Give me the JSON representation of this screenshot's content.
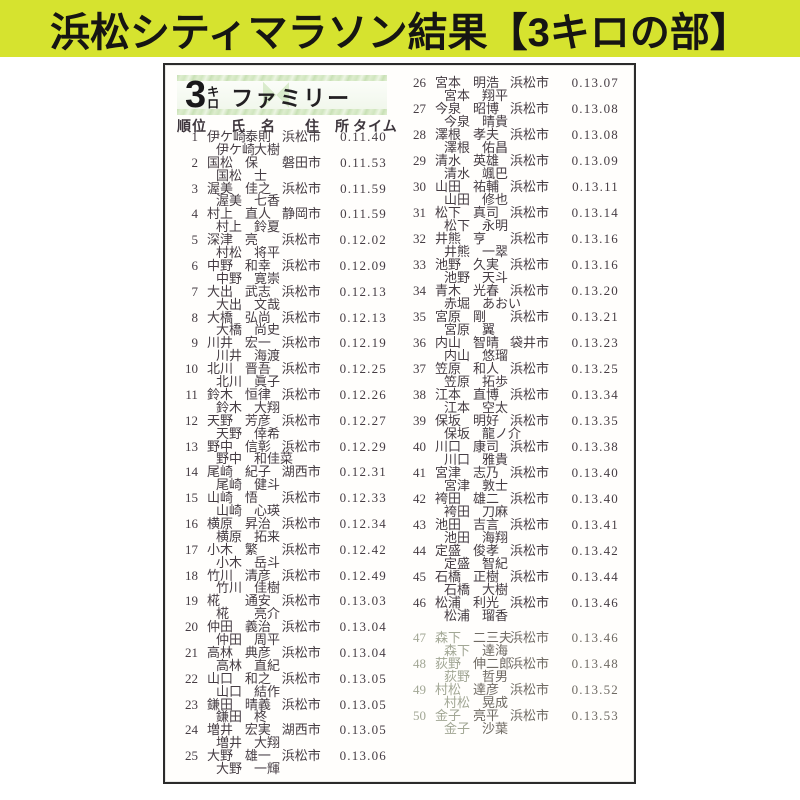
{
  "banner": {
    "title": "浜松シティマラソン結果【3キロの部】",
    "bg_color": "#d6e32f"
  },
  "doc": {
    "race_label": {
      "number": "3",
      "unit_top": "キ",
      "unit_bottom": "ロ",
      "category": "ファミリー"
    },
    "headers": {
      "rank": "順位",
      "name": "氏　名",
      "address": "住　所",
      "time": "タイム"
    },
    "accent_colors": {
      "strip_green": "#cbe3b8",
      "text": "#453c43",
      "faded": "#a2a795"
    },
    "results": [
      {
        "rank": "1",
        "f1": "伊ケ崎",
        "g1": "泰則",
        "f2": "伊ケ崎",
        "g2": "大樹",
        "city": "浜松市",
        "time": "0.11.40"
      },
      {
        "rank": "2",
        "f1": "国松",
        "g1": "保",
        "f2": "国松",
        "g2": "士",
        "city": "磐田市",
        "time": "0.11.53"
      },
      {
        "rank": "3",
        "f1": "渥美",
        "g1": "佳之",
        "f2": "渥美",
        "g2": "七香",
        "city": "浜松市",
        "time": "0.11.59"
      },
      {
        "rank": "4",
        "f1": "村上",
        "g1": "直人",
        "f2": "村上",
        "g2": "鈴夏",
        "city": "静岡市",
        "time": "0.11.59"
      },
      {
        "rank": "5",
        "f1": "深津",
        "g1": "亮",
        "f2": "村松",
        "g2": "将平",
        "city": "浜松市",
        "time": "0.12.02"
      },
      {
        "rank": "6",
        "f1": "中野",
        "g1": "和幸",
        "f2": "中野",
        "g2": "寛崇",
        "city": "浜松市",
        "time": "0.12.09"
      },
      {
        "rank": "7",
        "f1": "大出",
        "g1": "武志",
        "f2": "大出",
        "g2": "文哉",
        "city": "浜松市",
        "time": "0.12.13"
      },
      {
        "rank": "8",
        "f1": "大橋",
        "g1": "弘尚",
        "f2": "大橋",
        "g2": "尚史",
        "city": "浜松市",
        "time": "0.12.13"
      },
      {
        "rank": "9",
        "f1": "川井",
        "g1": "宏一",
        "f2": "川井",
        "g2": "海渡",
        "city": "浜松市",
        "time": "0.12.19"
      },
      {
        "rank": "10",
        "f1": "北川",
        "g1": "晋吾",
        "f2": "北川",
        "g2": "眞子",
        "city": "浜松市",
        "time": "0.12.25"
      },
      {
        "rank": "11",
        "f1": "鈴木",
        "g1": "恒律",
        "f2": "鈴木",
        "g2": "大翔",
        "city": "浜松市",
        "time": "0.12.26"
      },
      {
        "rank": "12",
        "f1": "天野",
        "g1": "芳彦",
        "f2": "天野",
        "g2": "倖希",
        "city": "浜松市",
        "time": "0.12.27"
      },
      {
        "rank": "13",
        "f1": "野中",
        "g1": "信彰",
        "f2": "野中",
        "g2": "和佳菜",
        "city": "浜松市",
        "time": "0.12.29"
      },
      {
        "rank": "14",
        "f1": "尾崎",
        "g1": "紀子",
        "f2": "尾崎",
        "g2": "健斗",
        "city": "湖西市",
        "time": "0.12.31"
      },
      {
        "rank": "15",
        "f1": "山崎",
        "g1": "悟",
        "f2": "山崎",
        "g2": "心瑛",
        "city": "浜松市",
        "time": "0.12.33"
      },
      {
        "rank": "16",
        "f1": "横原",
        "g1": "昇治",
        "f2": "横原",
        "g2": "拓来",
        "city": "浜松市",
        "time": "0.12.34"
      },
      {
        "rank": "17",
        "f1": "小木",
        "g1": "繁",
        "f2": "小木",
        "g2": "岳斗",
        "city": "浜松市",
        "time": "0.12.42"
      },
      {
        "rank": "18",
        "f1": "竹川",
        "g1": "清彦",
        "f2": "竹川",
        "g2": "佳樹",
        "city": "浜松市",
        "time": "0.12.49"
      },
      {
        "rank": "19",
        "f1": "椛",
        "g1": "通安",
        "f2": "椛",
        "g2": "亮介",
        "city": "浜松市",
        "time": "0.13.03"
      },
      {
        "rank": "20",
        "f1": "仲田",
        "g1": "義治",
        "f2": "仲田",
        "g2": "周平",
        "city": "浜松市",
        "time": "0.13.04"
      },
      {
        "rank": "21",
        "f1": "高林",
        "g1": "典彦",
        "f2": "高林",
        "g2": "直紀",
        "city": "浜松市",
        "time": "0.13.04"
      },
      {
        "rank": "22",
        "f1": "山口",
        "g1": "和之",
        "f2": "山口",
        "g2": "結作",
        "city": "浜松市",
        "time": "0.13.05"
      },
      {
        "rank": "23",
        "f1": "鎌田",
        "g1": "晴義",
        "f2": "鎌田",
        "g2": "柊",
        "city": "浜松市",
        "time": "0.13.05"
      },
      {
        "rank": "24",
        "f1": "増井",
        "g1": "宏実",
        "f2": "増井",
        "g2": "大翔",
        "city": "湖西市",
        "time": "0.13.05"
      },
      {
        "rank": "25",
        "f1": "大野",
        "g1": "雄一",
        "f2": "大野",
        "g2": "一輝",
        "city": "浜松市",
        "time": "0.13.06"
      },
      {
        "rank": "26",
        "f1": "宮本",
        "g1": "明浩",
        "f2": "宮本",
        "g2": "翔平",
        "city": "浜松市",
        "time": "0.13.07"
      },
      {
        "rank": "27",
        "f1": "今泉",
        "g1": "昭博",
        "f2": "今泉",
        "g2": "晴貴",
        "city": "浜松市",
        "time": "0.13.08"
      },
      {
        "rank": "28",
        "f1": "澤根",
        "g1": "孝夫",
        "f2": "澤根",
        "g2": "佑昌",
        "city": "浜松市",
        "time": "0.13.08"
      },
      {
        "rank": "29",
        "f1": "清水",
        "g1": "英雄",
        "f2": "清水",
        "g2": "颯巴",
        "city": "浜松市",
        "time": "0.13.09"
      },
      {
        "rank": "30",
        "f1": "山田",
        "g1": "祐輔",
        "f2": "山田",
        "g2": "修也",
        "city": "浜松市",
        "time": "0.13.11"
      },
      {
        "rank": "31",
        "f1": "松下",
        "g1": "真司",
        "f2": "松下",
        "g2": "永明",
        "city": "浜松市",
        "time": "0.13.14"
      },
      {
        "rank": "32",
        "f1": "井熊",
        "g1": "亨",
        "f2": "井熊",
        "g2": "一翠",
        "city": "浜松市",
        "time": "0.13.16"
      },
      {
        "rank": "33",
        "f1": "池野",
        "g1": "久実",
        "f2": "池野",
        "g2": "天斗",
        "city": "浜松市",
        "time": "0.13.16"
      },
      {
        "rank": "34",
        "f1": "青木",
        "g1": "光春",
        "f2": "赤堀",
        "g2": "あおい",
        "city": "浜松市",
        "time": "0.13.20"
      },
      {
        "rank": "35",
        "f1": "宮原",
        "g1": "剛",
        "f2": "宮原",
        "g2": "翼",
        "city": "浜松市",
        "time": "0.13.21"
      },
      {
        "rank": "36",
        "f1": "内山",
        "g1": "智晴",
        "f2": "内山",
        "g2": "悠瑠",
        "city": "袋井市",
        "time": "0.13.23"
      },
      {
        "rank": "37",
        "f1": "笠原",
        "g1": "和人",
        "f2": "笠原",
        "g2": "拓歩",
        "city": "浜松市",
        "time": "0.13.25"
      },
      {
        "rank": "38",
        "f1": "江本",
        "g1": "直博",
        "f2": "江本",
        "g2": "空太",
        "city": "浜松市",
        "time": "0.13.34"
      },
      {
        "rank": "39",
        "f1": "保坂",
        "g1": "明好",
        "f2": "保坂",
        "g2": "龍ノ介",
        "city": "浜松市",
        "time": "0.13.35"
      },
      {
        "rank": "40",
        "f1": "川口",
        "g1": "康司",
        "f2": "川口",
        "g2": "雅貴",
        "city": "浜松市",
        "time": "0.13.38"
      },
      {
        "rank": "41",
        "f1": "宮津",
        "g1": "志乃",
        "f2": "宮津",
        "g2": "敦士",
        "city": "浜松市",
        "time": "0.13.40"
      },
      {
        "rank": "42",
        "f1": "袴田",
        "g1": "雄二",
        "f2": "袴田",
        "g2": "刀麻",
        "city": "浜松市",
        "time": "0.13.40"
      },
      {
        "rank": "43",
        "f1": "池田",
        "g1": "吉言",
        "f2": "池田",
        "g2": "海翔",
        "city": "浜松市",
        "time": "0.13.41"
      },
      {
        "rank": "44",
        "f1": "定盛",
        "g1": "俊孝",
        "f2": "定盛",
        "g2": "智紀",
        "city": "浜松市",
        "time": "0.13.42"
      },
      {
        "rank": "45",
        "f1": "石橋",
        "g1": "正樹",
        "f2": "石橋",
        "g2": "大樹",
        "city": "浜松市",
        "time": "0.13.44"
      },
      {
        "rank": "46",
        "f1": "松浦",
        "g1": "利光",
        "f2": "松浦",
        "g2": "瑠香",
        "city": "浜松市",
        "time": "0.13.46"
      },
      {
        "rank": "47",
        "f1": "森下",
        "g1": "二三夫",
        "f2": "森下",
        "g2": "達海",
        "city": "浜松市",
        "time": "0.13.46",
        "faded": true,
        "gap": true
      },
      {
        "rank": "48",
        "f1": "荻野",
        "g1": "伸二郎",
        "f2": "荻野",
        "g2": "哲男",
        "city": "浜松市",
        "time": "0.13.48",
        "faded": true
      },
      {
        "rank": "49",
        "f1": "村松",
        "g1": "達彦",
        "f2": "村松",
        "g2": "晃成",
        "city": "浜松市",
        "time": "0.13.52",
        "faded": true
      },
      {
        "rank": "50",
        "f1": "金子",
        "g1": "亮平",
        "f2": "金子",
        "g2": "沙葉",
        "city": "浜松市",
        "time": "0.13.53",
        "faded": true
      }
    ]
  }
}
